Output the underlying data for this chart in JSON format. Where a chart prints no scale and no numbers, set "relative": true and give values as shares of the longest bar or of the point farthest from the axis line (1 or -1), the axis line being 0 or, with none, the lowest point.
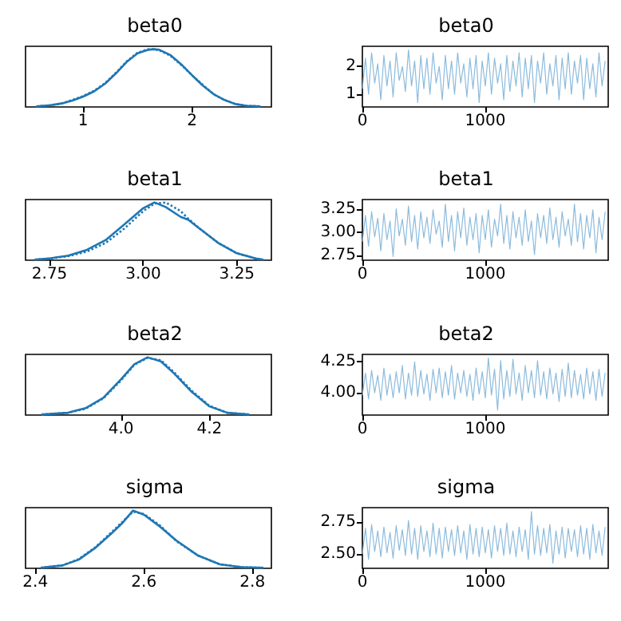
{
  "chart_data": [
    {
      "type": "line",
      "title": "beta0",
      "relative": true,
      "tick_labels": "x",
      "xlim": [
        0.47,
        2.73
      ],
      "xticks": [
        1,
        2
      ],
      "x": [
        0.57,
        0.7,
        0.8,
        0.9,
        1.0,
        1.1,
        1.2,
        1.3,
        1.4,
        1.5,
        1.6,
        1.65,
        1.7,
        1.8,
        1.9,
        2.0,
        2.1,
        2.2,
        2.3,
        2.4,
        2.5,
        2.63
      ],
      "series": [
        {
          "color": "#1f77b4",
          "line_style": "solid",
          "values": [
            0.01,
            0.03,
            0.06,
            0.11,
            0.18,
            0.27,
            0.4,
            0.58,
            0.78,
            0.93,
            0.99,
            1.0,
            0.99,
            0.9,
            0.74,
            0.55,
            0.37,
            0.22,
            0.12,
            0.05,
            0.02,
            0.01
          ]
        },
        {
          "color": "#1f77b4",
          "line_style": "dotted",
          "values": [
            0.01,
            0.03,
            0.06,
            0.12,
            0.19,
            0.28,
            0.41,
            0.59,
            0.79,
            0.94,
            1.0,
            1.0,
            0.98,
            0.89,
            0.73,
            0.55,
            0.38,
            0.22,
            0.12,
            0.05,
            0.02,
            0.01
          ]
        }
      ]
    },
    {
      "type": "line",
      "title": "beta0",
      "xlim": [
        0,
        2000
      ],
      "xticks": [
        0,
        1000
      ],
      "ylim": [
        0.54,
        2.73
      ],
      "yticks": [
        1,
        2
      ],
      "x": [
        0,
        25,
        50,
        75,
        100,
        125,
        150,
        175,
        200,
        225,
        250,
        275,
        300,
        325,
        350,
        375,
        400,
        425,
        450,
        475,
        500,
        525,
        550,
        575,
        600,
        625,
        650,
        675,
        700,
        725,
        750,
        775,
        800,
        825,
        850,
        875,
        900,
        925,
        950,
        975,
        1000,
        1025,
        1050,
        1075,
        1100,
        1125,
        1150,
        1175,
        1200,
        1225,
        1250,
        1275,
        1300,
        1325,
        1350,
        1375,
        1400,
        1425,
        1450,
        1475,
        1500,
        1525,
        1550,
        1575,
        1600,
        1625,
        1650,
        1675,
        1700,
        1725,
        1750,
        1775,
        1800,
        1825,
        1850,
        1875,
        1900,
        1925,
        1950,
        1975
      ],
      "series": [
        {
          "color": "#8cbbdc",
          "values": [
            1.2,
            2.3,
            1.0,
            2.5,
            1.4,
            2.1,
            0.8,
            2.4,
            1.3,
            2.2,
            0.9,
            2.5,
            1.5,
            2.0,
            1.1,
            2.6,
            1.3,
            2.2,
            0.7,
            2.4,
            1.2,
            2.3,
            1.0,
            2.5,
            1.4,
            2.0,
            0.8,
            2.4,
            1.2,
            2.2,
            1.0,
            2.5,
            1.4,
            2.1,
            0.9,
            2.3,
            1.2,
            2.4,
            0.7,
            2.2,
            1.3,
            2.5,
            1.0,
            2.3,
            1.4,
            2.1,
            0.8,
            2.4,
            1.1,
            2.2,
            1.3,
            2.5,
            0.9,
            2.3,
            1.2,
            2.4,
            0.7,
            2.2,
            1.4,
            2.5,
            1.0,
            2.1,
            1.3,
            2.4,
            0.8,
            2.3,
            1.2,
            2.5,
            1.0,
            2.2,
            1.4,
            2.4,
            0.8,
            2.3,
            1.2,
            2.1,
            0.9,
            2.5,
            1.3,
            2.2
          ]
        }
      ]
    },
    {
      "type": "line",
      "title": "beta1",
      "relative": true,
      "tick_labels": "x",
      "xlim": [
        2.686,
        3.342
      ],
      "xticks": [
        2.75,
        {
          "value": 3,
          "label": "3.00"
        },
        3.25
      ],
      "x": [
        2.71,
        2.75,
        2.8,
        2.85,
        2.9,
        2.95,
        3.0,
        3.03,
        3.06,
        3.1,
        3.12,
        3.15,
        3.2,
        3.25,
        3.3,
        3.32
      ],
      "series": [
        {
          "color": "#1f77b4",
          "line_style": "solid",
          "values": [
            0.01,
            0.03,
            0.08,
            0.18,
            0.35,
            0.62,
            0.9,
            1.0,
            0.92,
            0.75,
            0.7,
            0.55,
            0.3,
            0.12,
            0.03,
            0.01
          ]
        },
        {
          "color": "#1f77b4",
          "line_style": "dotted",
          "values": [
            0.01,
            0.03,
            0.07,
            0.15,
            0.3,
            0.55,
            0.85,
            0.98,
            1.0,
            0.85,
            0.72,
            0.55,
            0.3,
            0.12,
            0.03,
            0.01
          ]
        }
      ]
    },
    {
      "type": "line",
      "title": "beta1",
      "xlim": [
        0,
        2000
      ],
      "xticks": [
        0,
        1000
      ],
      "ylim": [
        2.7,
        3.35
      ],
      "yticks": [
        2.75,
        {
          "value": 3,
          "label": "3.00"
        },
        3.25
      ],
      "x": [
        0,
        25,
        50,
        75,
        100,
        125,
        150,
        175,
        200,
        225,
        250,
        275,
        300,
        325,
        350,
        375,
        400,
        425,
        450,
        475,
        500,
        525,
        550,
        575,
        600,
        625,
        650,
        675,
        700,
        725,
        750,
        775,
        800,
        825,
        850,
        875,
        900,
        925,
        950,
        975,
        1000,
        1025,
        1050,
        1075,
        1100,
        1125,
        1150,
        1175,
        1200,
        1225,
        1250,
        1275,
        1300,
        1325,
        1350,
        1375,
        1400,
        1425,
        1450,
        1475,
        1500,
        1525,
        1550,
        1575,
        1600,
        1625,
        1650,
        1675,
        1700,
        1725,
        1750,
        1775,
        1800,
        1825,
        1850,
        1875,
        1900,
        1925,
        1950,
        1975
      ],
      "series": [
        {
          "color": "#8cbbdc",
          "values": [
            2.9,
            3.18,
            2.85,
            3.22,
            2.95,
            3.15,
            2.8,
            3.2,
            2.92,
            3.12,
            2.74,
            3.25,
            2.96,
            3.14,
            2.86,
            3.28,
            2.9,
            3.18,
            2.82,
            3.22,
            2.94,
            3.16,
            2.88,
            3.24,
            2.98,
            3.12,
            2.84,
            3.3,
            2.9,
            3.18,
            2.8,
            3.22,
            2.94,
            3.26,
            2.86,
            3.16,
            2.92,
            3.2,
            2.78,
            3.18,
            2.92,
            3.24,
            2.84,
            3.14,
            2.96,
            3.3,
            2.88,
            3.18,
            2.82,
            3.22,
            2.94,
            3.16,
            2.86,
            3.24,
            2.9,
            3.12,
            2.76,
            3.2,
            2.94,
            3.18,
            2.88,
            3.26,
            2.92,
            3.16,
            2.84,
            3.22,
            2.96,
            3.14,
            2.86,
            3.3,
            2.9,
            3.2,
            2.82,
            3.18,
            2.94,
            3.24,
            2.78,
            3.16,
            2.92,
            3.22
          ]
        }
      ]
    },
    {
      "type": "line",
      "title": "beta2",
      "relative": true,
      "tick_labels": "x",
      "xlim": [
        3.784,
        4.34
      ],
      "xticks": [
        {
          "value": 4,
          "label": "4.0"
        },
        4.2
      ],
      "x": [
        3.82,
        3.88,
        3.92,
        3.96,
        4.0,
        4.03,
        4.06,
        4.09,
        4.12,
        4.16,
        4.2,
        4.24,
        4.29
      ],
      "series": [
        {
          "color": "#1f77b4",
          "line_style": "solid",
          "values": [
            0.01,
            0.04,
            0.12,
            0.3,
            0.62,
            0.88,
            1.0,
            0.93,
            0.72,
            0.4,
            0.15,
            0.04,
            0.01
          ]
        },
        {
          "color": "#1f77b4",
          "line_style": "dotted",
          "values": [
            0.01,
            0.04,
            0.11,
            0.29,
            0.6,
            0.87,
            0.99,
            0.95,
            0.74,
            0.42,
            0.16,
            0.04,
            0.01
          ]
        }
      ]
    },
    {
      "type": "line",
      "title": "beta2",
      "xlim": [
        0,
        2000
      ],
      "xticks": [
        0,
        1000
      ],
      "ylim": [
        3.82,
        4.31
      ],
      "yticks": [
        {
          "value": 4,
          "label": "4.00"
        },
        4.25
      ],
      "x": [
        0,
        25,
        50,
        75,
        100,
        125,
        150,
        175,
        200,
        225,
        250,
        275,
        300,
        325,
        350,
        375,
        400,
        425,
        450,
        475,
        500,
        525,
        550,
        575,
        600,
        625,
        650,
        675,
        700,
        725,
        750,
        775,
        800,
        825,
        850,
        875,
        900,
        925,
        950,
        975,
        1000,
        1025,
        1050,
        1075,
        1100,
        1125,
        1150,
        1175,
        1200,
        1225,
        1250,
        1275,
        1300,
        1325,
        1350,
        1375,
        1400,
        1425,
        1450,
        1475,
        1500,
        1525,
        1550,
        1575,
        1600,
        1625,
        1650,
        1675,
        1700,
        1725,
        1750,
        1775,
        1800,
        1825,
        1850,
        1875,
        1900,
        1925,
        1950,
        1975
      ],
      "series": [
        {
          "color": "#8cbbdc",
          "values": [
            3.98,
            4.16,
            3.95,
            4.18,
            4.0,
            4.14,
            3.94,
            4.2,
            3.98,
            4.15,
            3.96,
            4.17,
            4.0,
            4.22,
            3.95,
            4.16,
            3.98,
            4.25,
            3.97,
            4.18,
            3.99,
            4.15,
            3.94,
            4.19,
            4.0,
            4.2,
            3.96,
            4.17,
            3.98,
            4.22,
            3.95,
            4.16,
            4.0,
            4.18,
            3.97,
            4.15,
            3.94,
            4.2,
            3.99,
            4.17,
            3.96,
            4.28,
            3.98,
            4.19,
            3.86,
            4.26,
            3.95,
            4.18,
            3.97,
            4.27,
            3.99,
            4.16,
            3.94,
            4.22,
            4.0,
            4.18,
            3.96,
            4.26,
            3.98,
            4.17,
            3.95,
            4.2,
            3.99,
            4.16,
            3.93,
            4.19,
            3.97,
            4.24,
            3.96,
            4.18,
            3.98,
            4.15,
            3.95,
            4.2,
            3.99,
            4.17,
            3.94,
            4.19,
            3.97,
            4.16
          ]
        }
      ]
    },
    {
      "type": "line",
      "title": "sigma",
      "relative": true,
      "tick_labels": "x",
      "xlim": [
        2.382,
        2.835
      ],
      "xticks": [
        2.4,
        2.6,
        2.8
      ],
      "x": [
        2.41,
        2.45,
        2.48,
        2.51,
        2.54,
        2.56,
        2.58,
        2.6,
        2.63,
        2.66,
        2.7,
        2.74,
        2.78,
        2.82
      ],
      "series": [
        {
          "color": "#1f77b4",
          "line_style": "solid",
          "values": [
            0.01,
            0.05,
            0.15,
            0.35,
            0.6,
            0.78,
            1.0,
            0.93,
            0.72,
            0.48,
            0.22,
            0.07,
            0.02,
            0.01
          ]
        },
        {
          "color": "#1f77b4",
          "line_style": "dotted",
          "values": [
            0.01,
            0.05,
            0.16,
            0.36,
            0.62,
            0.8,
            0.98,
            0.94,
            0.74,
            0.47,
            0.22,
            0.07,
            0.02,
            0.01
          ]
        }
      ]
    },
    {
      "type": "line",
      "title": "sigma",
      "xlim": [
        0,
        2000
      ],
      "xticks": [
        0,
        1000
      ],
      "ylim": [
        2.39,
        2.86
      ],
      "yticks": [
        {
          "value": 2.5,
          "label": "2.50"
        },
        2.75
      ],
      "x": [
        0,
        25,
        50,
        75,
        100,
        125,
        150,
        175,
        200,
        225,
        250,
        275,
        300,
        325,
        350,
        375,
        400,
        425,
        450,
        475,
        500,
        525,
        550,
        575,
        600,
        625,
        650,
        675,
        700,
        725,
        750,
        775,
        800,
        825,
        850,
        875,
        900,
        925,
        950,
        975,
        1000,
        1025,
        1050,
        1075,
        1100,
        1125,
        1150,
        1175,
        1200,
        1225,
        1250,
        1275,
        1300,
        1325,
        1350,
        1375,
        1400,
        1425,
        1450,
        1475,
        1500,
        1525,
        1550,
        1575,
        1600,
        1625,
        1650,
        1675,
        1700,
        1725,
        1750,
        1775,
        1800,
        1825,
        1850,
        1875,
        1900,
        1925,
        1950,
        1975
      ],
      "series": [
        {
          "color": "#8cbbdc",
          "values": [
            2.5,
            2.7,
            2.46,
            2.73,
            2.52,
            2.68,
            2.48,
            2.71,
            2.51,
            2.67,
            2.47,
            2.72,
            2.53,
            2.69,
            2.49,
            2.76,
            2.5,
            2.7,
            2.46,
            2.72,
            2.52,
            2.68,
            2.48,
            2.74,
            2.5,
            2.7,
            2.47,
            2.71,
            2.52,
            2.69,
            2.49,
            2.72,
            2.51,
            2.68,
            2.46,
            2.73,
            2.5,
            2.7,
            2.48,
            2.71,
            2.51,
            2.69,
            2.47,
            2.72,
            2.52,
            2.7,
            2.49,
            2.74,
            2.5,
            2.68,
            2.48,
            2.71,
            2.52,
            2.69,
            2.46,
            2.83,
            2.5,
            2.72,
            2.49,
            2.7,
            2.51,
            2.73,
            2.43,
            2.68,
            2.5,
            2.71,
            2.47,
            2.7,
            2.52,
            2.69,
            2.48,
            2.72,
            2.5,
            2.7,
            2.46,
            2.73,
            2.51,
            2.68,
            2.49,
            2.71
          ]
        }
      ]
    }
  ]
}
